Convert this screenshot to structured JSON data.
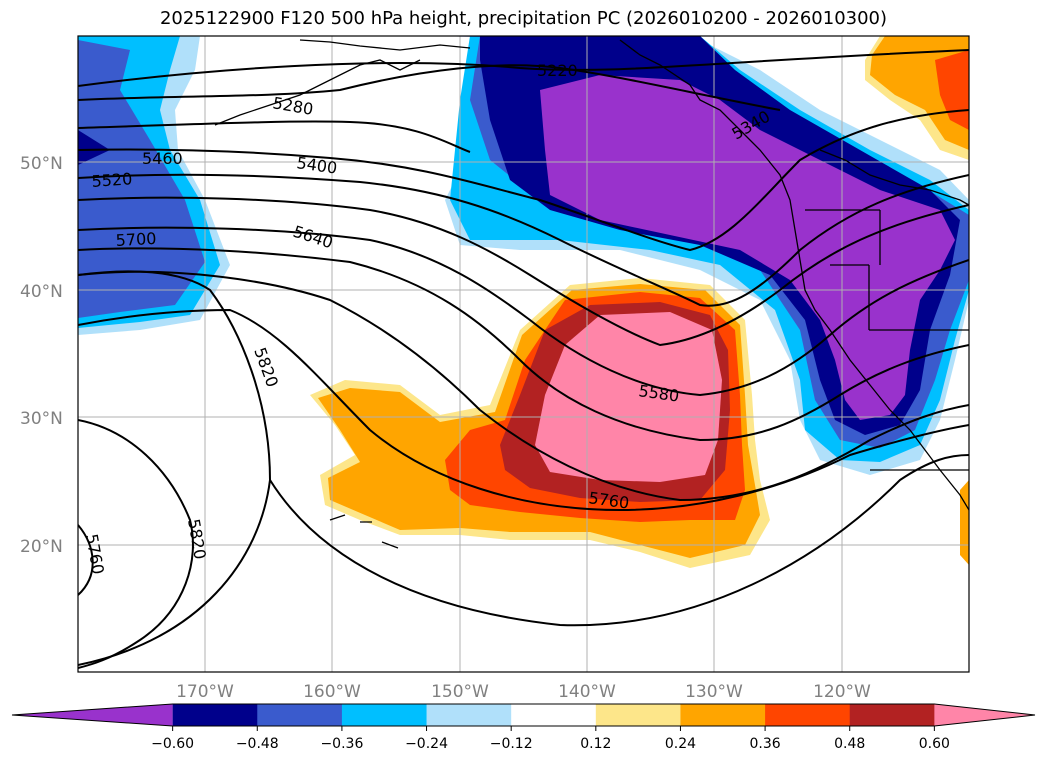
{
  "title": "2025122900 F120 500 hPa height, precipitation PC (2026010200 - 2026010300)",
  "lat_labels": [
    "50°N",
    "40°N",
    "30°N",
    "20°N"
  ],
  "lon_labels": [
    "170°W",
    "160°W",
    "150°W",
    "140°W",
    "130°W",
    "120°W"
  ],
  "colorbar": {
    "ticks": [
      "−0.60",
      "−0.48",
      "−0.36",
      "−0.24",
      "−0.12",
      "0.12",
      "0.24",
      "0.36",
      "0.48",
      "0.60"
    ],
    "colors": [
      "#9932cc",
      "#00008b",
      "#3a5bcd",
      "#00bfff",
      "#b0e0fa",
      "#ffffff",
      "#fde68a",
      "#ffa500",
      "#ff4500",
      "#b22222",
      "#ff85a8"
    ]
  },
  "contour_labels": [
    "5220",
    "5280",
    "5340",
    "5400",
    "5460",
    "5520",
    "5580",
    "5640",
    "5700",
    "5760",
    "5820",
    "5820",
    "5760"
  ]
}
